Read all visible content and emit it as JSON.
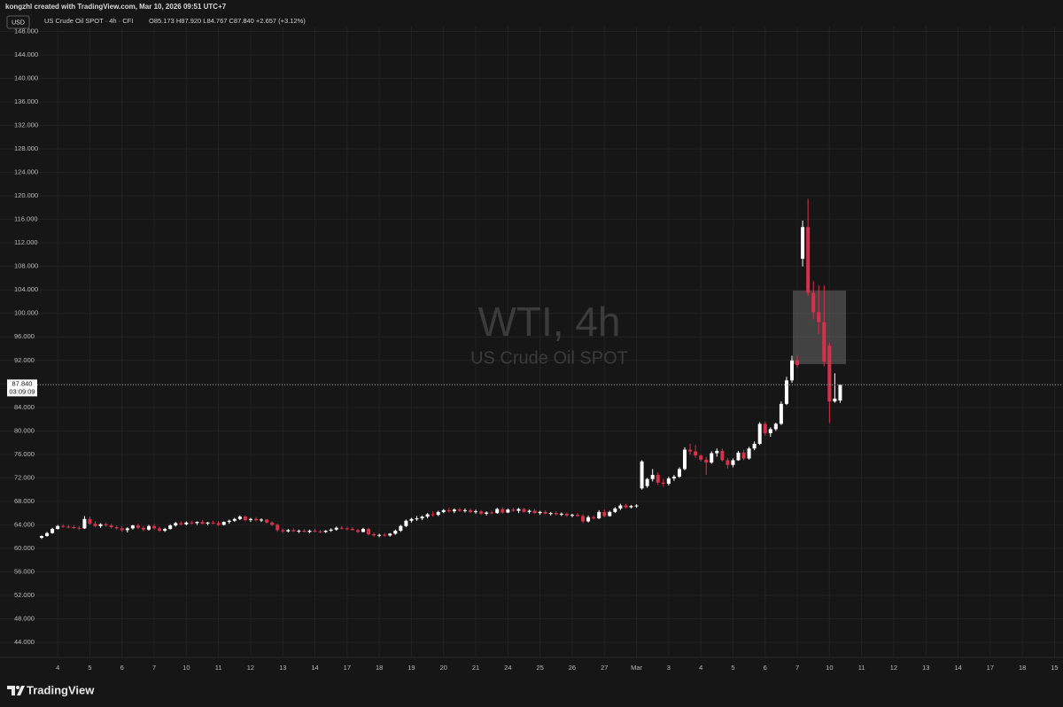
{
  "header": {
    "caption": "kongzhl created with TradingView.com, Mar 10, 2026 09:51 UTC+7",
    "currency": "USD",
    "symbol": "US Crude Oil SPOT · 4h · CFI",
    "ohlc": "O85.173 H87.920 L84.767 C87.840 +2.657 (+3.12%)"
  },
  "watermark": {
    "title": "WTI, 4h",
    "subtitle": "US Crude Oil SPOT"
  },
  "price_tag": {
    "price": "87.840",
    "countdown": "03:09:09"
  },
  "footer": {
    "brand": "TradingView"
  },
  "chart_data": {
    "type": "candlestick",
    "up_color": "#ffffff",
    "down_color": "#d9304a",
    "grid": true,
    "ylim": [
      41.44,
      148.83
    ],
    "yticks": [
      {
        "value": 44,
        "label": "44.000"
      },
      {
        "value": 48,
        "label": "48.000"
      },
      {
        "value": 52,
        "label": "52.000"
      },
      {
        "value": 56,
        "label": "56.000"
      },
      {
        "value": 60,
        "label": "60.000"
      },
      {
        "value": 64,
        "label": "64.000"
      },
      {
        "value": 68,
        "label": "68.000"
      },
      {
        "value": 72,
        "label": "72.000"
      },
      {
        "value": 76,
        "label": "76.000"
      },
      {
        "value": 80,
        "label": "80.000"
      },
      {
        "value": 84,
        "label": "84.000"
      },
      {
        "value": 88,
        "label": "88.000"
      },
      {
        "value": 92,
        "label": "92.000"
      },
      {
        "value": 96,
        "label": "96.000"
      },
      {
        "value": 100,
        "label": "100.000"
      },
      {
        "value": 104,
        "label": "104.000"
      },
      {
        "value": 108,
        "label": "108.000"
      },
      {
        "value": 112,
        "label": "112.000"
      },
      {
        "value": 116,
        "label": "116.000"
      },
      {
        "value": 120,
        "label": "120.000"
      },
      {
        "value": 124,
        "label": "124.000"
      },
      {
        "value": 128,
        "label": "128.000"
      },
      {
        "value": 132,
        "label": "132.000"
      },
      {
        "value": 136,
        "label": "136.000"
      },
      {
        "value": 140,
        "label": "140.000"
      },
      {
        "value": 144,
        "label": "144.000"
      },
      {
        "value": 148,
        "label": "148.000"
      }
    ],
    "x_labels": [
      "4",
      "5",
      "6",
      "7",
      "10",
      "11",
      "12",
      "13",
      "14",
      "17",
      "18",
      "19",
      "20",
      "21",
      "24",
      "25",
      "26",
      "27",
      "Mar",
      "3",
      "4",
      "5",
      "6",
      "7",
      "10",
      "11",
      "12",
      "13",
      "14",
      "17",
      "18",
      "15"
    ],
    "ohlc": [
      [
        61.8,
        62.2,
        61.6,
        62.1
      ],
      [
        62.1,
        62.8,
        62.0,
        62.6
      ],
      [
        62.6,
        63.5,
        62.5,
        63.3
      ],
      [
        63.3,
        64.0,
        63.2,
        63.8
      ],
      [
        63.8,
        64.1,
        63.5,
        63.7
      ],
      [
        63.7,
        64.0,
        63.4,
        63.6
      ],
      [
        63.6,
        63.9,
        63.3,
        63.5
      ],
      [
        63.5,
        63.8,
        63.1,
        63.4
      ],
      [
        63.4,
        65.5,
        63.3,
        65.0
      ],
      [
        65.0,
        65.4,
        64.0,
        64.2
      ],
      [
        64.2,
        64.6,
        63.6,
        63.8
      ],
      [
        63.8,
        64.3,
        63.5,
        64.1
      ],
      [
        64.1,
        64.4,
        63.7,
        63.9
      ],
      [
        63.9,
        64.2,
        63.4,
        63.6
      ],
      [
        63.6,
        63.9,
        63.2,
        63.4
      ],
      [
        63.4,
        63.8,
        62.8,
        63.1
      ],
      [
        63.1,
        63.6,
        62.7,
        63.4
      ],
      [
        63.4,
        64.0,
        63.2,
        63.9
      ],
      [
        63.9,
        64.2,
        63.3,
        63.5
      ],
      [
        63.5,
        63.8,
        62.9,
        63.2
      ],
      [
        63.2,
        64.0,
        63.0,
        63.8
      ],
      [
        63.8,
        64.1,
        63.2,
        63.4
      ],
      [
        63.4,
        63.7,
        62.8,
        63.0
      ],
      [
        63.0,
        63.5,
        62.8,
        63.3
      ],
      [
        63.3,
        64.1,
        63.2,
        63.9
      ],
      [
        63.9,
        64.5,
        63.7,
        64.3
      ],
      [
        64.3,
        64.6,
        63.9,
        64.1
      ],
      [
        64.1,
        64.6,
        63.9,
        64.4
      ],
      [
        64.4,
        64.7,
        64.1,
        64.3
      ],
      [
        64.3,
        64.6,
        64.0,
        64.5
      ],
      [
        64.5,
        64.8,
        64.1,
        64.2
      ],
      [
        64.2,
        64.5,
        63.9,
        64.4
      ],
      [
        64.4,
        64.7,
        64.1,
        64.3
      ],
      [
        64.3,
        64.6,
        63.8,
        64.0
      ],
      [
        64.0,
        64.6,
        63.9,
        64.5
      ],
      [
        64.5,
        64.9,
        64.2,
        64.7
      ],
      [
        64.7,
        65.2,
        64.5,
        65.0
      ],
      [
        65.0,
        65.6,
        64.8,
        65.4
      ],
      [
        65.4,
        65.6,
        64.6,
        64.8
      ],
      [
        64.8,
        65.2,
        64.5,
        65.0
      ],
      [
        65.0,
        65.3,
        64.6,
        64.8
      ],
      [
        64.8,
        65.1,
        64.5,
        64.9
      ],
      [
        64.9,
        65.0,
        64.2,
        64.4
      ],
      [
        64.4,
        64.6,
        63.8,
        64.0
      ],
      [
        64.0,
        64.2,
        62.8,
        63.1
      ],
      [
        63.1,
        63.4,
        62.6,
        62.9
      ],
      [
        62.9,
        63.3,
        62.7,
        63.1
      ],
      [
        63.1,
        63.4,
        62.8,
        62.9
      ],
      [
        62.9,
        63.2,
        62.6,
        63.0
      ],
      [
        63.0,
        63.3,
        62.7,
        62.8
      ],
      [
        62.8,
        63.2,
        62.6,
        63.0
      ],
      [
        63.0,
        63.3,
        62.7,
        62.9
      ],
      [
        62.9,
        63.1,
        62.6,
        62.8
      ],
      [
        62.8,
        63.1,
        62.6,
        63.0
      ],
      [
        63.0,
        63.4,
        62.8,
        63.2
      ],
      [
        63.2,
        63.7,
        63.0,
        63.5
      ],
      [
        63.5,
        63.8,
        63.2,
        63.4
      ],
      [
        63.4,
        63.7,
        63.1,
        63.3
      ],
      [
        63.3,
        63.6,
        63.0,
        63.1
      ],
      [
        63.1,
        63.3,
        62.6,
        62.8
      ],
      [
        62.8,
        63.5,
        62.7,
        63.3
      ],
      [
        63.3,
        63.5,
        62.2,
        62.4
      ],
      [
        62.4,
        62.7,
        62.0,
        62.2
      ],
      [
        62.2,
        62.5,
        61.9,
        62.3
      ],
      [
        62.3,
        62.6,
        62.0,
        62.2
      ],
      [
        62.2,
        62.6,
        62.0,
        62.5
      ],
      [
        62.5,
        63.2,
        62.3,
        63.0
      ],
      [
        63.0,
        64.0,
        62.8,
        63.8
      ],
      [
        63.8,
        64.9,
        63.6,
        64.7
      ],
      [
        64.7,
        65.2,
        64.4,
        65.0
      ],
      [
        65.0,
        65.5,
        64.7,
        65.1
      ],
      [
        65.1,
        65.6,
        64.8,
        65.4
      ],
      [
        65.4,
        66.0,
        65.1,
        65.8
      ],
      [
        65.8,
        66.3,
        65.4,
        65.7
      ],
      [
        65.7,
        66.4,
        65.5,
        66.2
      ],
      [
        66.2,
        66.7,
        66.0,
        66.5
      ],
      [
        66.5,
        66.9,
        66.1,
        66.3
      ],
      [
        66.3,
        66.8,
        66.0,
        66.6
      ],
      [
        66.6,
        66.9,
        66.2,
        66.4
      ],
      [
        66.4,
        66.8,
        66.1,
        66.5
      ],
      [
        66.5,
        66.8,
        66.0,
        66.2
      ],
      [
        66.2,
        66.6,
        65.9,
        66.3
      ],
      [
        66.3,
        66.5,
        65.7,
        65.9
      ],
      [
        65.9,
        66.3,
        65.6,
        66.1
      ],
      [
        66.1,
        66.4,
        65.8,
        66.0
      ],
      [
        66.0,
        66.9,
        65.9,
        66.7
      ],
      [
        66.7,
        67.0,
        65.9,
        66.1
      ],
      [
        66.1,
        66.8,
        66.0,
        66.6
      ],
      [
        66.6,
        66.9,
        66.2,
        66.4
      ],
      [
        66.4,
        66.9,
        66.0,
        66.7
      ],
      [
        66.7,
        66.9,
        66.1,
        66.2
      ],
      [
        66.2,
        66.6,
        65.9,
        66.4
      ],
      [
        66.4,
        66.7,
        65.9,
        66.0
      ],
      [
        66.0,
        66.4,
        65.7,
        66.2
      ],
      [
        66.2,
        66.5,
        65.8,
        65.9
      ],
      [
        65.9,
        66.2,
        65.6,
        66.0
      ],
      [
        66.0,
        66.3,
        65.6,
        65.8
      ],
      [
        65.8,
        66.1,
        65.5,
        65.9
      ],
      [
        65.9,
        66.1,
        65.4,
        65.6
      ],
      [
        65.6,
        65.9,
        65.3,
        65.7
      ],
      [
        65.7,
        66.0,
        65.4,
        65.5
      ],
      [
        65.5,
        65.8,
        64.3,
        64.6
      ],
      [
        64.6,
        65.6,
        64.4,
        65.3
      ],
      [
        65.3,
        65.6,
        64.9,
        65.1
      ],
      [
        65.1,
        66.5,
        65.0,
        66.2
      ],
      [
        66.2,
        66.6,
        65.3,
        65.5
      ],
      [
        65.5,
        66.4,
        65.4,
        66.2
      ],
      [
        66.2,
        67.0,
        66.0,
        66.8
      ],
      [
        66.8,
        67.6,
        66.5,
        67.3
      ],
      [
        67.3,
        67.6,
        66.8,
        67.0
      ],
      [
        67.0,
        67.4,
        66.8,
        67.2
      ],
      [
        67.2,
        67.5,
        66.9,
        67.3
      ],
      [
        70.2,
        75.0,
        70.0,
        74.8
      ],
      [
        70.6,
        72.0,
        70.3,
        71.8
      ],
      [
        71.8,
        73.5,
        71.4,
        72.5
      ],
      [
        72.5,
        72.9,
        70.8,
        71.2
      ],
      [
        71.2,
        71.8,
        70.5,
        71.0
      ],
      [
        71.0,
        72.2,
        70.7,
        71.9
      ],
      [
        71.9,
        72.5,
        71.5,
        72.2
      ],
      [
        72.2,
        73.8,
        72.0,
        73.5
      ],
      [
        73.5,
        77.2,
        73.3,
        76.8
      ],
      [
        76.8,
        77.8,
        75.9,
        76.5
      ],
      [
        76.5,
        77.6,
        75.4,
        75.8
      ],
      [
        75.8,
        76.0,
        74.8,
        75.1
      ],
      [
        75.1,
        75.6,
        72.5,
        74.6
      ],
      [
        74.6,
        76.5,
        74.4,
        76.2
      ],
      [
        76.2,
        77.0,
        75.6,
        76.6
      ],
      [
        76.6,
        77.0,
        74.8,
        75.0
      ],
      [
        75.0,
        75.4,
        73.6,
        74.2
      ],
      [
        74.2,
        75.3,
        73.8,
        75.0
      ],
      [
        75.0,
        76.6,
        74.9,
        76.3
      ],
      [
        76.3,
        76.8,
        75.0,
        75.3
      ],
      [
        75.3,
        77.3,
        75.1,
        77.0
      ],
      [
        77.0,
        78.2,
        76.7,
        77.8
      ],
      [
        77.8,
        81.5,
        77.6,
        81.2
      ],
      [
        81.2,
        81.6,
        79.2,
        79.6
      ],
      [
        79.6,
        80.6,
        79.0,
        80.3
      ],
      [
        80.3,
        81.4,
        80.0,
        81.2
      ],
      [
        81.2,
        85.0,
        81.0,
        84.6
      ],
      [
        84.6,
        89.2,
        84.4,
        88.6
      ],
      [
        88.6,
        92.8,
        88.2,
        92.0
      ],
      [
        92.0,
        92.8,
        90.8,
        91.2
      ],
      [
        109.3,
        115.8,
        108.0,
        114.7
      ],
      [
        114.7,
        119.5,
        103.0,
        103.5
      ],
      [
        103.5,
        105.5,
        99.0,
        100.2
      ],
      [
        100.2,
        104.8,
        96.5,
        98.5
      ],
      [
        98.5,
        104.8,
        91.0,
        91.8
      ],
      [
        94.5,
        95.0,
        81.3,
        85.0
      ],
      [
        85.0,
        89.8,
        84.8,
        85.5
      ],
      [
        85.173,
        87.92,
        84.767,
        87.84
      ]
    ]
  }
}
